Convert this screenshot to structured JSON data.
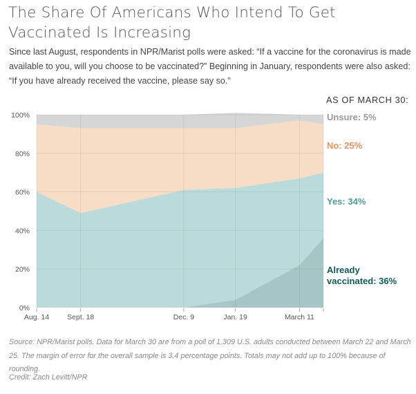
{
  "title": "The Share Of Americans Who Intend To Get Vaccinated Is Increasing",
  "subtitle": "Since last August, respondents in NPR/Marist polls were asked: “If a vaccine for the coronavirus is made available to you, will you choose to be vaccinated?” Beginning in January, respondents were also asked: “If you have already received the vaccine, please say so.”",
  "legend": {
    "heading": "AS OF MARCH 30:",
    "unsure": "Unsure: 5%",
    "no": "No: 25%",
    "yes": "Yes: 34%",
    "vaccinated_line1": "Already",
    "vaccinated_line2": "vaccinated: 36%"
  },
  "footer": {
    "source": "Source: NPR/Marist polls. Data for March 30 are from a poll of 1,309 U.S. adults conducted between March 22 and March 25. The margin of error for the overall sample is 3.4 percentage points. Totals may not add up to 100% because of rounding.",
    "credit": "Credit: Zach Levitt/NPR"
  },
  "colors": {
    "unsure": "#d6d6d6",
    "no": "#f7dcc6",
    "yes": "#badbd9",
    "vaccinated": "#a5c6c4",
    "grid": "#c8c8c8"
  },
  "chart_data": {
    "type": "area",
    "stacked": true,
    "title": "The Share Of Americans Who Intend To Get Vaccinated Is Increasing",
    "xlabel": "",
    "ylabel": "",
    "x_type": "date_days_since_aug14",
    "x": [
      0,
      35,
      117,
      158,
      209,
      228
    ],
    "x_labels": [
      "Aug. 14",
      "Sept. 18",
      "Dec. 9",
      "Jan. 19",
      "March 11",
      ""
    ],
    "x_tick_positions": [
      0,
      35,
      117,
      158,
      209,
      228
    ],
    "ylim": [
      0,
      100
    ],
    "y_ticks": [
      0,
      20,
      40,
      60,
      80,
      100
    ],
    "y_tick_labels": [
      "0%",
      "20%",
      "40%",
      "60%",
      "80%",
      "100%"
    ],
    "grid": true,
    "legend_position": "right",
    "series": [
      {
        "name": "Already vaccinated",
        "values": [
          null,
          null,
          0,
          4,
          22,
          36
        ]
      },
      {
        "name": "Yes",
        "values": [
          60,
          49,
          61,
          58,
          45,
          34
        ]
      },
      {
        "name": "No",
        "values": [
          35,
          44,
          32,
          31,
          30,
          25
        ]
      },
      {
        "name": "Unsure",
        "values": [
          5,
          7,
          7,
          8,
          3,
          5
        ]
      }
    ]
  }
}
